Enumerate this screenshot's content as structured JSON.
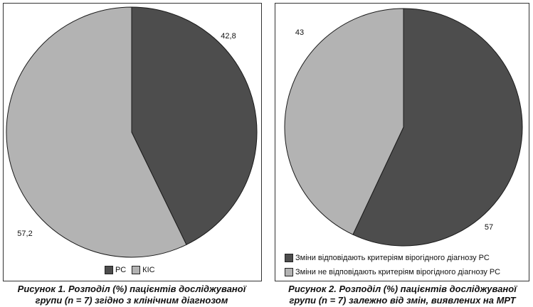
{
  "chart_data": [
    {
      "type": "pie",
      "slices": [
        {
          "name": "РС",
          "value": 42.8,
          "label": "42,8",
          "color": "#4d4d4d"
        },
        {
          "name": "КІС",
          "value": 57.2,
          "label": "57,2",
          "color": "#b3b3b3"
        }
      ],
      "start": "12 o'clock",
      "direction": "clockwise",
      "legend": "bottom",
      "caption": {
        "line1": "Рисунок 1. Розподіл (%) пацієнтів досліджуваної",
        "line2": "групи (n = 7) згідно з клінічним діагнозом"
      }
    },
    {
      "type": "pie",
      "slices": [
        {
          "name": "Зміни відповідають критеріям вірогідного діагнозу РС",
          "value": 57,
          "label": "57",
          "color": "#4d4d4d"
        },
        {
          "name": "Зміни не відповідають критеріям вірогідного діагнозу РС",
          "value": 43,
          "label": "43",
          "color": "#b3b3b3"
        }
      ],
      "start": "12 o'clock",
      "direction": "clockwise",
      "legend": "bottom",
      "caption": {
        "line1": "Рисунок 2. Розподіл (%) пацієнтів досліджуваної",
        "line2": "групи (n = 7) залежно від змін, виявлених на МРТ"
      }
    }
  ]
}
